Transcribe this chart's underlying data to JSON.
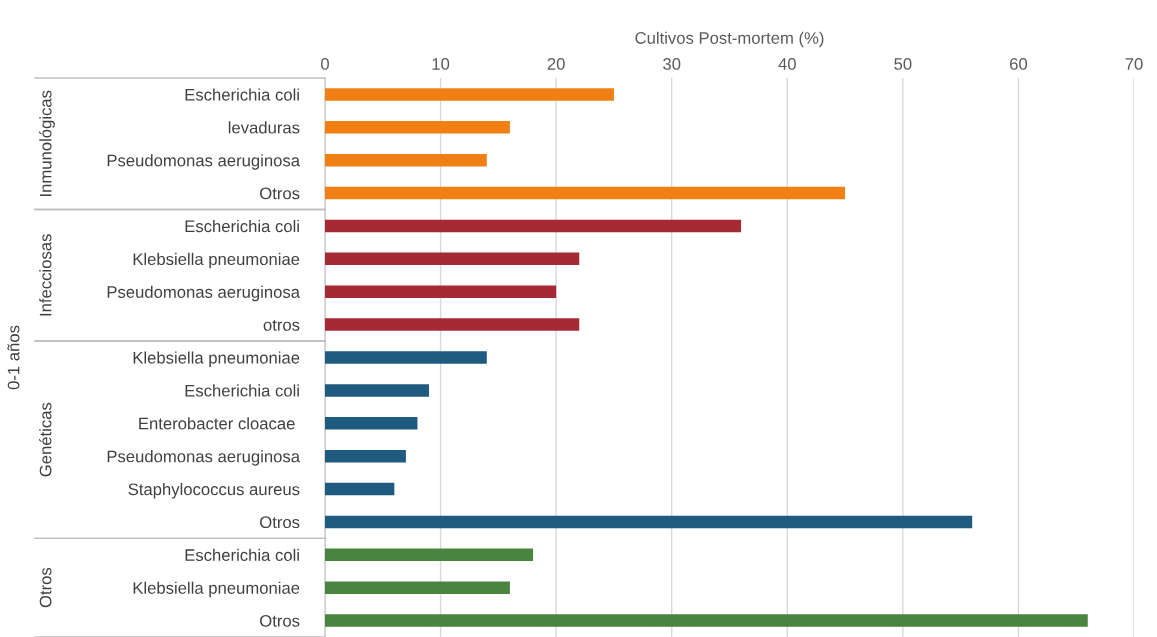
{
  "chart_data": {
    "type": "bar",
    "orientation": "horizontal",
    "xlabel": "Cultivos Post-mortem (%)",
    "annotations": [
      "Inmunológicas",
      "Infecciosas",
      "Genéticas",
      "Otros",
      "0-1 años"
    ],
    "categories": [
      "Escherichia coli",
      "levaduras",
      "Pseudomonas aeruginosa",
      "Otros",
      "Escherichia coli",
      "Klebsiella pneumoniae",
      "Pseudomonas aeruginosa",
      "otros",
      "Klebsiella pneumoniae",
      "Escherichia coli",
      "Enterobacter cloacae ",
      "Pseudomonas aeruginosa",
      "Staphylococcus aureus",
      "Otros",
      "Escherichia coli",
      "Klebsiella pneumoniae",
      "Otros"
    ],
    "series": [
      {
        "color": "#f08014",
        "values": [
          25,
          16,
          14,
          45,
          null,
          null,
          null,
          null,
          null,
          null,
          null,
          null,
          null,
          null,
          null,
          null,
          null
        ]
      },
      {
        "color": "#a52a36",
        "values": [
          null,
          null,
          null,
          null,
          36,
          22,
          20,
          22,
          null,
          null,
          null,
          null,
          null,
          null,
          null,
          null,
          null
        ]
      },
      {
        "color": "#1f5a7f",
        "values": [
          null,
          null,
          null,
          null,
          null,
          null,
          null,
          null,
          14,
          9,
          8,
          7,
          6,
          56,
          null,
          null,
          null
        ]
      },
      {
        "color": "#4a8540",
        "values": [
          null,
          null,
          null,
          null,
          null,
          null,
          null,
          null,
          null,
          null,
          null,
          null,
          null,
          null,
          18,
          16,
          66
        ]
      }
    ],
    "xlim": [
      0,
      70
    ],
    "xticks": [
      0,
      10,
      20,
      30,
      40,
      50,
      60,
      70
    ],
    "grid": "x"
  }
}
